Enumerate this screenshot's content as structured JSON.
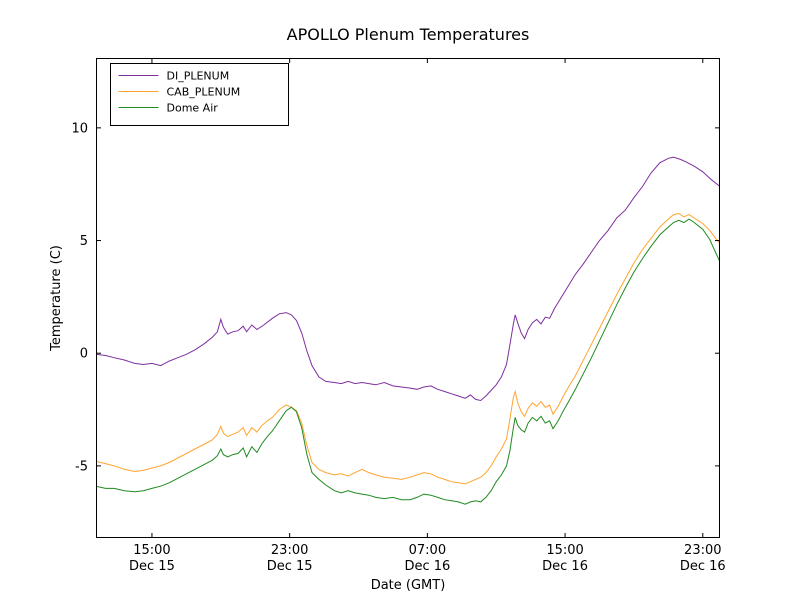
{
  "chart_data": {
    "type": "line",
    "title": "APOLLO Plenum Temperatures",
    "xlabel": "Date (GMT)",
    "ylabel": "Temperature (C)",
    "x_unit": "hours since Dec 15 00:00 GMT",
    "xlim": [
      11.75,
      48
    ],
    "ylim": [
      -8.2,
      13.1
    ],
    "grid": false,
    "legend_position": "upper-left",
    "yticks": [
      -5,
      0,
      5,
      10
    ],
    "xticks": [
      {
        "value": 15,
        "time": "15:00",
        "date": "Dec 15"
      },
      {
        "value": 23,
        "time": "23:00",
        "date": "Dec 15"
      },
      {
        "value": 31,
        "time": "07:00",
        "date": "Dec 16"
      },
      {
        "value": 39,
        "time": "15:00",
        "date": "Dec 16"
      },
      {
        "value": 47,
        "time": "23:00",
        "date": "Dec 16"
      }
    ],
    "series": [
      {
        "name": "DI_PLENUM",
        "color": "#7e2f9e",
        "points": [
          [
            11.75,
            -0.05
          ],
          [
            12.3,
            -0.1
          ],
          [
            12.8,
            -0.2
          ],
          [
            13.4,
            -0.3
          ],
          [
            14,
            -0.45
          ],
          [
            14.5,
            -0.5
          ],
          [
            15,
            -0.45
          ],
          [
            15.5,
            -0.55
          ],
          [
            16,
            -0.35
          ],
          [
            16.5,
            -0.2
          ],
          [
            17,
            -0.05
          ],
          [
            17.5,
            0.15
          ],
          [
            18,
            0.4
          ],
          [
            18.5,
            0.7
          ],
          [
            18.8,
            0.95
          ],
          [
            19,
            1.5
          ],
          [
            19.15,
            1.15
          ],
          [
            19.4,
            0.85
          ],
          [
            19.7,
            0.95
          ],
          [
            20,
            1
          ],
          [
            20.3,
            1.2
          ],
          [
            20.5,
            0.95
          ],
          [
            20.8,
            1.25
          ],
          [
            21.1,
            1.05
          ],
          [
            21.5,
            1.25
          ],
          [
            22,
            1.55
          ],
          [
            22.4,
            1.75
          ],
          [
            22.8,
            1.8
          ],
          [
            23.1,
            1.7
          ],
          [
            23.4,
            1.45
          ],
          [
            23.7,
            0.9
          ],
          [
            24,
            0.1
          ],
          [
            24.3,
            -0.55
          ],
          [
            24.7,
            -1.05
          ],
          [
            25.1,
            -1.25
          ],
          [
            25.6,
            -1.3
          ],
          [
            26,
            -1.35
          ],
          [
            26.4,
            -1.25
          ],
          [
            26.8,
            -1.35
          ],
          [
            27.2,
            -1.3
          ],
          [
            27.6,
            -1.35
          ],
          [
            28,
            -1.4
          ],
          [
            28.5,
            -1.3
          ],
          [
            29,
            -1.45
          ],
          [
            29.5,
            -1.5
          ],
          [
            30,
            -1.55
          ],
          [
            30.4,
            -1.6
          ],
          [
            30.8,
            -1.5
          ],
          [
            31.2,
            -1.45
          ],
          [
            31.6,
            -1.6
          ],
          [
            32,
            -1.7
          ],
          [
            32.4,
            -1.8
          ],
          [
            32.8,
            -1.9
          ],
          [
            33.2,
            -2
          ],
          [
            33.5,
            -1.85
          ],
          [
            33.8,
            -2.05
          ],
          [
            34.1,
            -2.1
          ],
          [
            34.4,
            -1.9
          ],
          [
            34.7,
            -1.65
          ],
          [
            35,
            -1.4
          ],
          [
            35.3,
            -1.05
          ],
          [
            35.6,
            -0.5
          ],
          [
            35.8,
            0.4
          ],
          [
            36,
            1.3
          ],
          [
            36.1,
            1.7
          ],
          [
            36.25,
            1.35
          ],
          [
            36.45,
            0.9
          ],
          [
            36.65,
            0.65
          ],
          [
            36.85,
            1.05
          ],
          [
            37.1,
            1.35
          ],
          [
            37.35,
            1.5
          ],
          [
            37.6,
            1.3
          ],
          [
            37.85,
            1.6
          ],
          [
            38.1,
            1.55
          ],
          [
            38.4,
            2
          ],
          [
            38.8,
            2.5
          ],
          [
            39.2,
            3
          ],
          [
            39.6,
            3.5
          ],
          [
            40,
            3.9
          ],
          [
            40.5,
            4.45
          ],
          [
            41,
            5
          ],
          [
            41.5,
            5.45
          ],
          [
            42,
            6
          ],
          [
            42.5,
            6.35
          ],
          [
            43,
            6.9
          ],
          [
            43.5,
            7.4
          ],
          [
            44,
            8
          ],
          [
            44.5,
            8.45
          ],
          [
            45,
            8.65
          ],
          [
            45.3,
            8.7
          ],
          [
            45.7,
            8.6
          ],
          [
            46,
            8.5
          ],
          [
            46.5,
            8.3
          ],
          [
            47,
            8.05
          ],
          [
            47.5,
            7.7
          ],
          [
            48,
            7.4
          ]
        ]
      },
      {
        "name": "CAB_PLENUM",
        "color": "#ffa42e",
        "points": [
          [
            11.75,
            -4.8
          ],
          [
            12.3,
            -4.9
          ],
          [
            12.8,
            -5
          ],
          [
            13.4,
            -5.15
          ],
          [
            14,
            -5.25
          ],
          [
            14.5,
            -5.2
          ],
          [
            15,
            -5.1
          ],
          [
            15.5,
            -5
          ],
          [
            16,
            -4.85
          ],
          [
            16.5,
            -4.65
          ],
          [
            17,
            -4.45
          ],
          [
            17.5,
            -4.25
          ],
          [
            18,
            -4.05
          ],
          [
            18.5,
            -3.85
          ],
          [
            18.8,
            -3.6
          ],
          [
            19,
            -3.25
          ],
          [
            19.15,
            -3.55
          ],
          [
            19.4,
            -3.7
          ],
          [
            19.7,
            -3.6
          ],
          [
            20,
            -3.5
          ],
          [
            20.3,
            -3.3
          ],
          [
            20.5,
            -3.65
          ],
          [
            20.8,
            -3.3
          ],
          [
            21.1,
            -3.5
          ],
          [
            21.4,
            -3.2
          ],
          [
            21.7,
            -3
          ],
          [
            22,
            -2.85
          ],
          [
            22.4,
            -2.5
          ],
          [
            22.8,
            -2.3
          ],
          [
            23.1,
            -2.4
          ],
          [
            23.4,
            -2.55
          ],
          [
            23.7,
            -3.1
          ],
          [
            24,
            -4.1
          ],
          [
            24.3,
            -4.85
          ],
          [
            24.7,
            -5.15
          ],
          [
            25.1,
            -5.3
          ],
          [
            25.6,
            -5.4
          ],
          [
            26,
            -5.35
          ],
          [
            26.4,
            -5.45
          ],
          [
            26.8,
            -5.3
          ],
          [
            27.2,
            -5.15
          ],
          [
            27.6,
            -5.3
          ],
          [
            28,
            -5.4
          ],
          [
            28.5,
            -5.5
          ],
          [
            29,
            -5.55
          ],
          [
            29.5,
            -5.6
          ],
          [
            30,
            -5.5
          ],
          [
            30.4,
            -5.4
          ],
          [
            30.8,
            -5.3
          ],
          [
            31.2,
            -5.35
          ],
          [
            31.6,
            -5.5
          ],
          [
            32,
            -5.6
          ],
          [
            32.4,
            -5.7
          ],
          [
            32.8,
            -5.75
          ],
          [
            33.2,
            -5.8
          ],
          [
            33.5,
            -5.7
          ],
          [
            33.8,
            -5.6
          ],
          [
            34.1,
            -5.5
          ],
          [
            34.4,
            -5.3
          ],
          [
            34.7,
            -5
          ],
          [
            35,
            -4.6
          ],
          [
            35.3,
            -4.25
          ],
          [
            35.6,
            -3.8
          ],
          [
            35.8,
            -2.9
          ],
          [
            36,
            -1.95
          ],
          [
            36.1,
            -1.7
          ],
          [
            36.25,
            -2.2
          ],
          [
            36.45,
            -2.6
          ],
          [
            36.65,
            -2.8
          ],
          [
            36.85,
            -2.45
          ],
          [
            37.1,
            -2.2
          ],
          [
            37.35,
            -2.35
          ],
          [
            37.6,
            -2.15
          ],
          [
            37.85,
            -2.4
          ],
          [
            38.1,
            -2.3
          ],
          [
            38.3,
            -2.7
          ],
          [
            38.6,
            -2.35
          ],
          [
            38.9,
            -1.9
          ],
          [
            39.2,
            -1.5
          ],
          [
            39.6,
            -1
          ],
          [
            40,
            -0.4
          ],
          [
            40.5,
            0.35
          ],
          [
            41,
            1.1
          ],
          [
            41.5,
            1.85
          ],
          [
            42,
            2.6
          ],
          [
            42.5,
            3.3
          ],
          [
            43,
            4
          ],
          [
            43.5,
            4.6
          ],
          [
            44,
            5.1
          ],
          [
            44.5,
            5.6
          ],
          [
            45,
            5.95
          ],
          [
            45.3,
            6.15
          ],
          [
            45.6,
            6.2
          ],
          [
            45.9,
            6.05
          ],
          [
            46.2,
            6.15
          ],
          [
            46.5,
            6
          ],
          [
            47,
            5.75
          ],
          [
            47.4,
            5.45
          ],
          [
            47.7,
            5.15
          ],
          [
            48,
            4.85
          ]
        ]
      },
      {
        "name": "Dome Air",
        "color": "#1f8a1f",
        "points": [
          [
            11.75,
            -5.9
          ],
          [
            12.3,
            -6
          ],
          [
            12.8,
            -6
          ],
          [
            13.4,
            -6.1
          ],
          [
            14,
            -6.15
          ],
          [
            14.5,
            -6.1
          ],
          [
            15,
            -6
          ],
          [
            15.5,
            -5.9
          ],
          [
            16,
            -5.75
          ],
          [
            16.5,
            -5.55
          ],
          [
            17,
            -5.35
          ],
          [
            17.5,
            -5.15
          ],
          [
            18,
            -4.95
          ],
          [
            18.5,
            -4.75
          ],
          [
            18.8,
            -4.55
          ],
          [
            19,
            -4.25
          ],
          [
            19.15,
            -4.5
          ],
          [
            19.4,
            -4.6
          ],
          [
            19.7,
            -4.5
          ],
          [
            20,
            -4.45
          ],
          [
            20.3,
            -4.2
          ],
          [
            20.5,
            -4.6
          ],
          [
            20.8,
            -4.15
          ],
          [
            21.1,
            -4.4
          ],
          [
            21.4,
            -4
          ],
          [
            21.7,
            -3.7
          ],
          [
            22,
            -3.45
          ],
          [
            22.4,
            -3
          ],
          [
            22.8,
            -2.55
          ],
          [
            23.1,
            -2.4
          ],
          [
            23.4,
            -2.6
          ],
          [
            23.7,
            -3.3
          ],
          [
            24,
            -4.5
          ],
          [
            24.3,
            -5.3
          ],
          [
            24.7,
            -5.6
          ],
          [
            25.1,
            -5.85
          ],
          [
            25.6,
            -6.1
          ],
          [
            26,
            -6.2
          ],
          [
            26.4,
            -6.1
          ],
          [
            26.8,
            -6.2
          ],
          [
            27.2,
            -6.25
          ],
          [
            27.6,
            -6.3
          ],
          [
            28,
            -6.4
          ],
          [
            28.5,
            -6.45
          ],
          [
            29,
            -6.4
          ],
          [
            29.5,
            -6.5
          ],
          [
            30,
            -6.5
          ],
          [
            30.4,
            -6.4
          ],
          [
            30.8,
            -6.25
          ],
          [
            31.2,
            -6.3
          ],
          [
            31.6,
            -6.4
          ],
          [
            32,
            -6.5
          ],
          [
            32.4,
            -6.55
          ],
          [
            32.8,
            -6.6
          ],
          [
            33.2,
            -6.7
          ],
          [
            33.5,
            -6.6
          ],
          [
            33.8,
            -6.55
          ],
          [
            34.1,
            -6.6
          ],
          [
            34.4,
            -6.4
          ],
          [
            34.7,
            -6.1
          ],
          [
            35,
            -5.7
          ],
          [
            35.3,
            -5.4
          ],
          [
            35.6,
            -5
          ],
          [
            35.8,
            -4.3
          ],
          [
            36,
            -3.3
          ],
          [
            36.1,
            -2.85
          ],
          [
            36.25,
            -3.2
          ],
          [
            36.45,
            -3.4
          ],
          [
            36.65,
            -3.5
          ],
          [
            36.85,
            -3.1
          ],
          [
            37.1,
            -2.85
          ],
          [
            37.35,
            -3
          ],
          [
            37.6,
            -2.8
          ],
          [
            37.85,
            -3.1
          ],
          [
            38.1,
            -3
          ],
          [
            38.3,
            -3.35
          ],
          [
            38.6,
            -3
          ],
          [
            38.9,
            -2.55
          ],
          [
            39.2,
            -2.15
          ],
          [
            39.6,
            -1.6
          ],
          [
            40,
            -1
          ],
          [
            40.5,
            -0.25
          ],
          [
            41,
            0.55
          ],
          [
            41.5,
            1.35
          ],
          [
            42,
            2.15
          ],
          [
            42.5,
            2.9
          ],
          [
            43,
            3.6
          ],
          [
            43.5,
            4.2
          ],
          [
            44,
            4.75
          ],
          [
            44.5,
            5.25
          ],
          [
            45,
            5.6
          ],
          [
            45.3,
            5.8
          ],
          [
            45.6,
            5.9
          ],
          [
            45.9,
            5.8
          ],
          [
            46.2,
            5.95
          ],
          [
            46.5,
            5.8
          ],
          [
            47,
            5.5
          ],
          [
            47.4,
            5.05
          ],
          [
            47.7,
            4.55
          ],
          [
            48,
            4.05
          ]
        ]
      }
    ]
  }
}
